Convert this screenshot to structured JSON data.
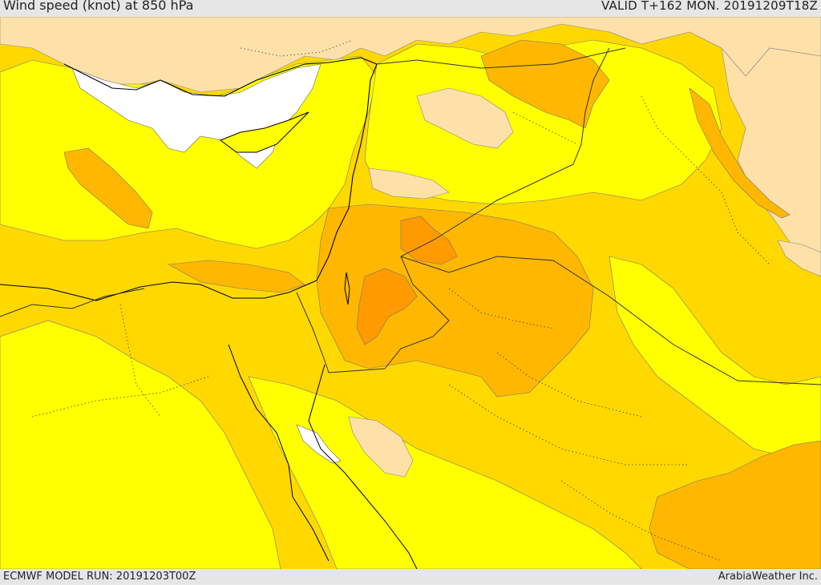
{
  "header": {
    "title": "Wind speed (knot) at 850 hPa",
    "valid": "VALID T+162 MON. 20191209T18Z"
  },
  "footer": {
    "model_run": "ECMWF MODEL RUN: 20191203T00Z",
    "credit": "ArabiaWeather Inc."
  },
  "palette": {
    "calm": "#ffffff",
    "light": "#fde1a8",
    "low": "#ffff00",
    "moderate": "#ffd800",
    "fresh": "#ffb700",
    "strong": "#ff9a00",
    "very_strong": "#ff8800",
    "coastline": "#000000",
    "border": "#222222"
  }
}
